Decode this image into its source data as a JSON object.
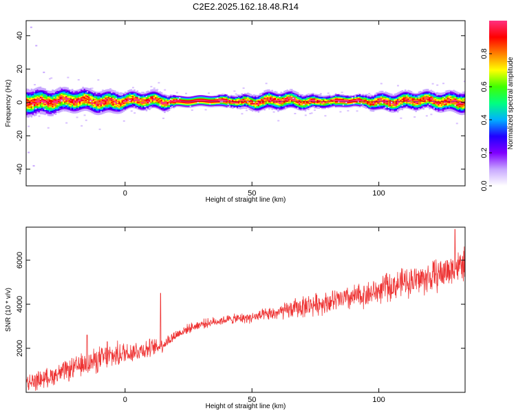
{
  "figure": {
    "title": "C2E2.2025.162.18.48.R14"
  },
  "chart_data": [
    {
      "type": "heatmap",
      "name": "spectrogram",
      "xlabel": "Height of straight line (km)",
      "ylabel": "Frequency (Hz)",
      "xlim": [
        -39,
        134
      ],
      "ylim": [
        -50,
        49
      ],
      "xticks": [
        "0",
        "50",
        "100"
      ],
      "yticks": [
        "-40",
        "-20",
        "0",
        "20",
        "40"
      ],
      "xticks_values": [
        0,
        50,
        100
      ],
      "yticks_values": [
        -40,
        -20,
        0,
        20,
        40
      ],
      "grid": false,
      "colorbar": {
        "label": "Normalized spectral amplitude",
        "ticks": [
          "0.0",
          "0.2",
          "0.4",
          "0.6",
          "0.8"
        ],
        "ticks_values": [
          0.0,
          0.2,
          0.4,
          0.6,
          0.8
        ],
        "range": [
          0,
          1
        ],
        "colormap": [
          "#ffffff",
          "#c8a8ff",
          "#8000ff",
          "#2000ff",
          "#00b0ff",
          "#00ff80",
          "#40ff00",
          "#ffff00",
          "#ff8000",
          "#ff0000",
          "#ff3080"
        ]
      },
      "band": {
        "center_hz": 0.5,
        "core_halfwidth_hz": 1.5,
        "envelope_halfwidth_hz": [
          [
            -39,
            6
          ],
          [
            -20,
            5
          ],
          [
            -5,
            5
          ],
          [
            0,
            4
          ],
          [
            15,
            4
          ],
          [
            20,
            2
          ],
          [
            35,
            2
          ],
          [
            40,
            2.5
          ],
          [
            55,
            4
          ],
          [
            65,
            4
          ],
          [
            75,
            3
          ],
          [
            90,
            2
          ],
          [
            100,
            4
          ],
          [
            120,
            4
          ],
          [
            134,
            5
          ]
        ],
        "outlier_points": [
          [
            -37,
            45
          ],
          [
            -35,
            34
          ],
          [
            -36,
            -38
          ],
          [
            -38,
            -30
          ],
          [
            -32,
            18
          ]
        ]
      }
    },
    {
      "type": "line",
      "name": "snr",
      "xlabel": "Height of straight line (km)",
      "ylabel": "SNR (10 * v/v)",
      "xlim": [
        -39,
        134
      ],
      "ylim": [
        0,
        7500
      ],
      "xticks": [
        "0",
        "50",
        "100"
      ],
      "yticks": [
        "2000",
        "4000",
        "6000"
      ],
      "xticks_values": [
        0,
        50,
        100
      ],
      "yticks_values": [
        2000,
        4000,
        6000
      ],
      "grid": false,
      "series": [
        {
          "color": "#ee3333",
          "x": [
            -39,
            -30,
            -20,
            -10,
            0,
            10,
            14,
            20,
            25,
            30,
            40,
            50,
            60,
            70,
            80,
            90,
            100,
            110,
            120,
            134
          ],
          "y_mid": [
            400,
            700,
            1100,
            1500,
            1800,
            2000,
            2100,
            2600,
            2900,
            3100,
            3300,
            3400,
            3600,
            3900,
            4100,
            4300,
            4600,
            5000,
            5200,
            5800
          ],
          "y_spread": [
            500,
            500,
            600,
            700,
            650,
            500,
            400,
            300,
            250,
            250,
            250,
            300,
            400,
            600,
            600,
            700,
            700,
            800,
            900,
            900
          ],
          "spikes": [
            [
              -15,
              2600
            ],
            [
              -7,
              2300
            ],
            [
              14,
              4500
            ],
            [
              103,
              5400
            ],
            [
              130,
              7400
            ]
          ]
        }
      ]
    }
  ]
}
